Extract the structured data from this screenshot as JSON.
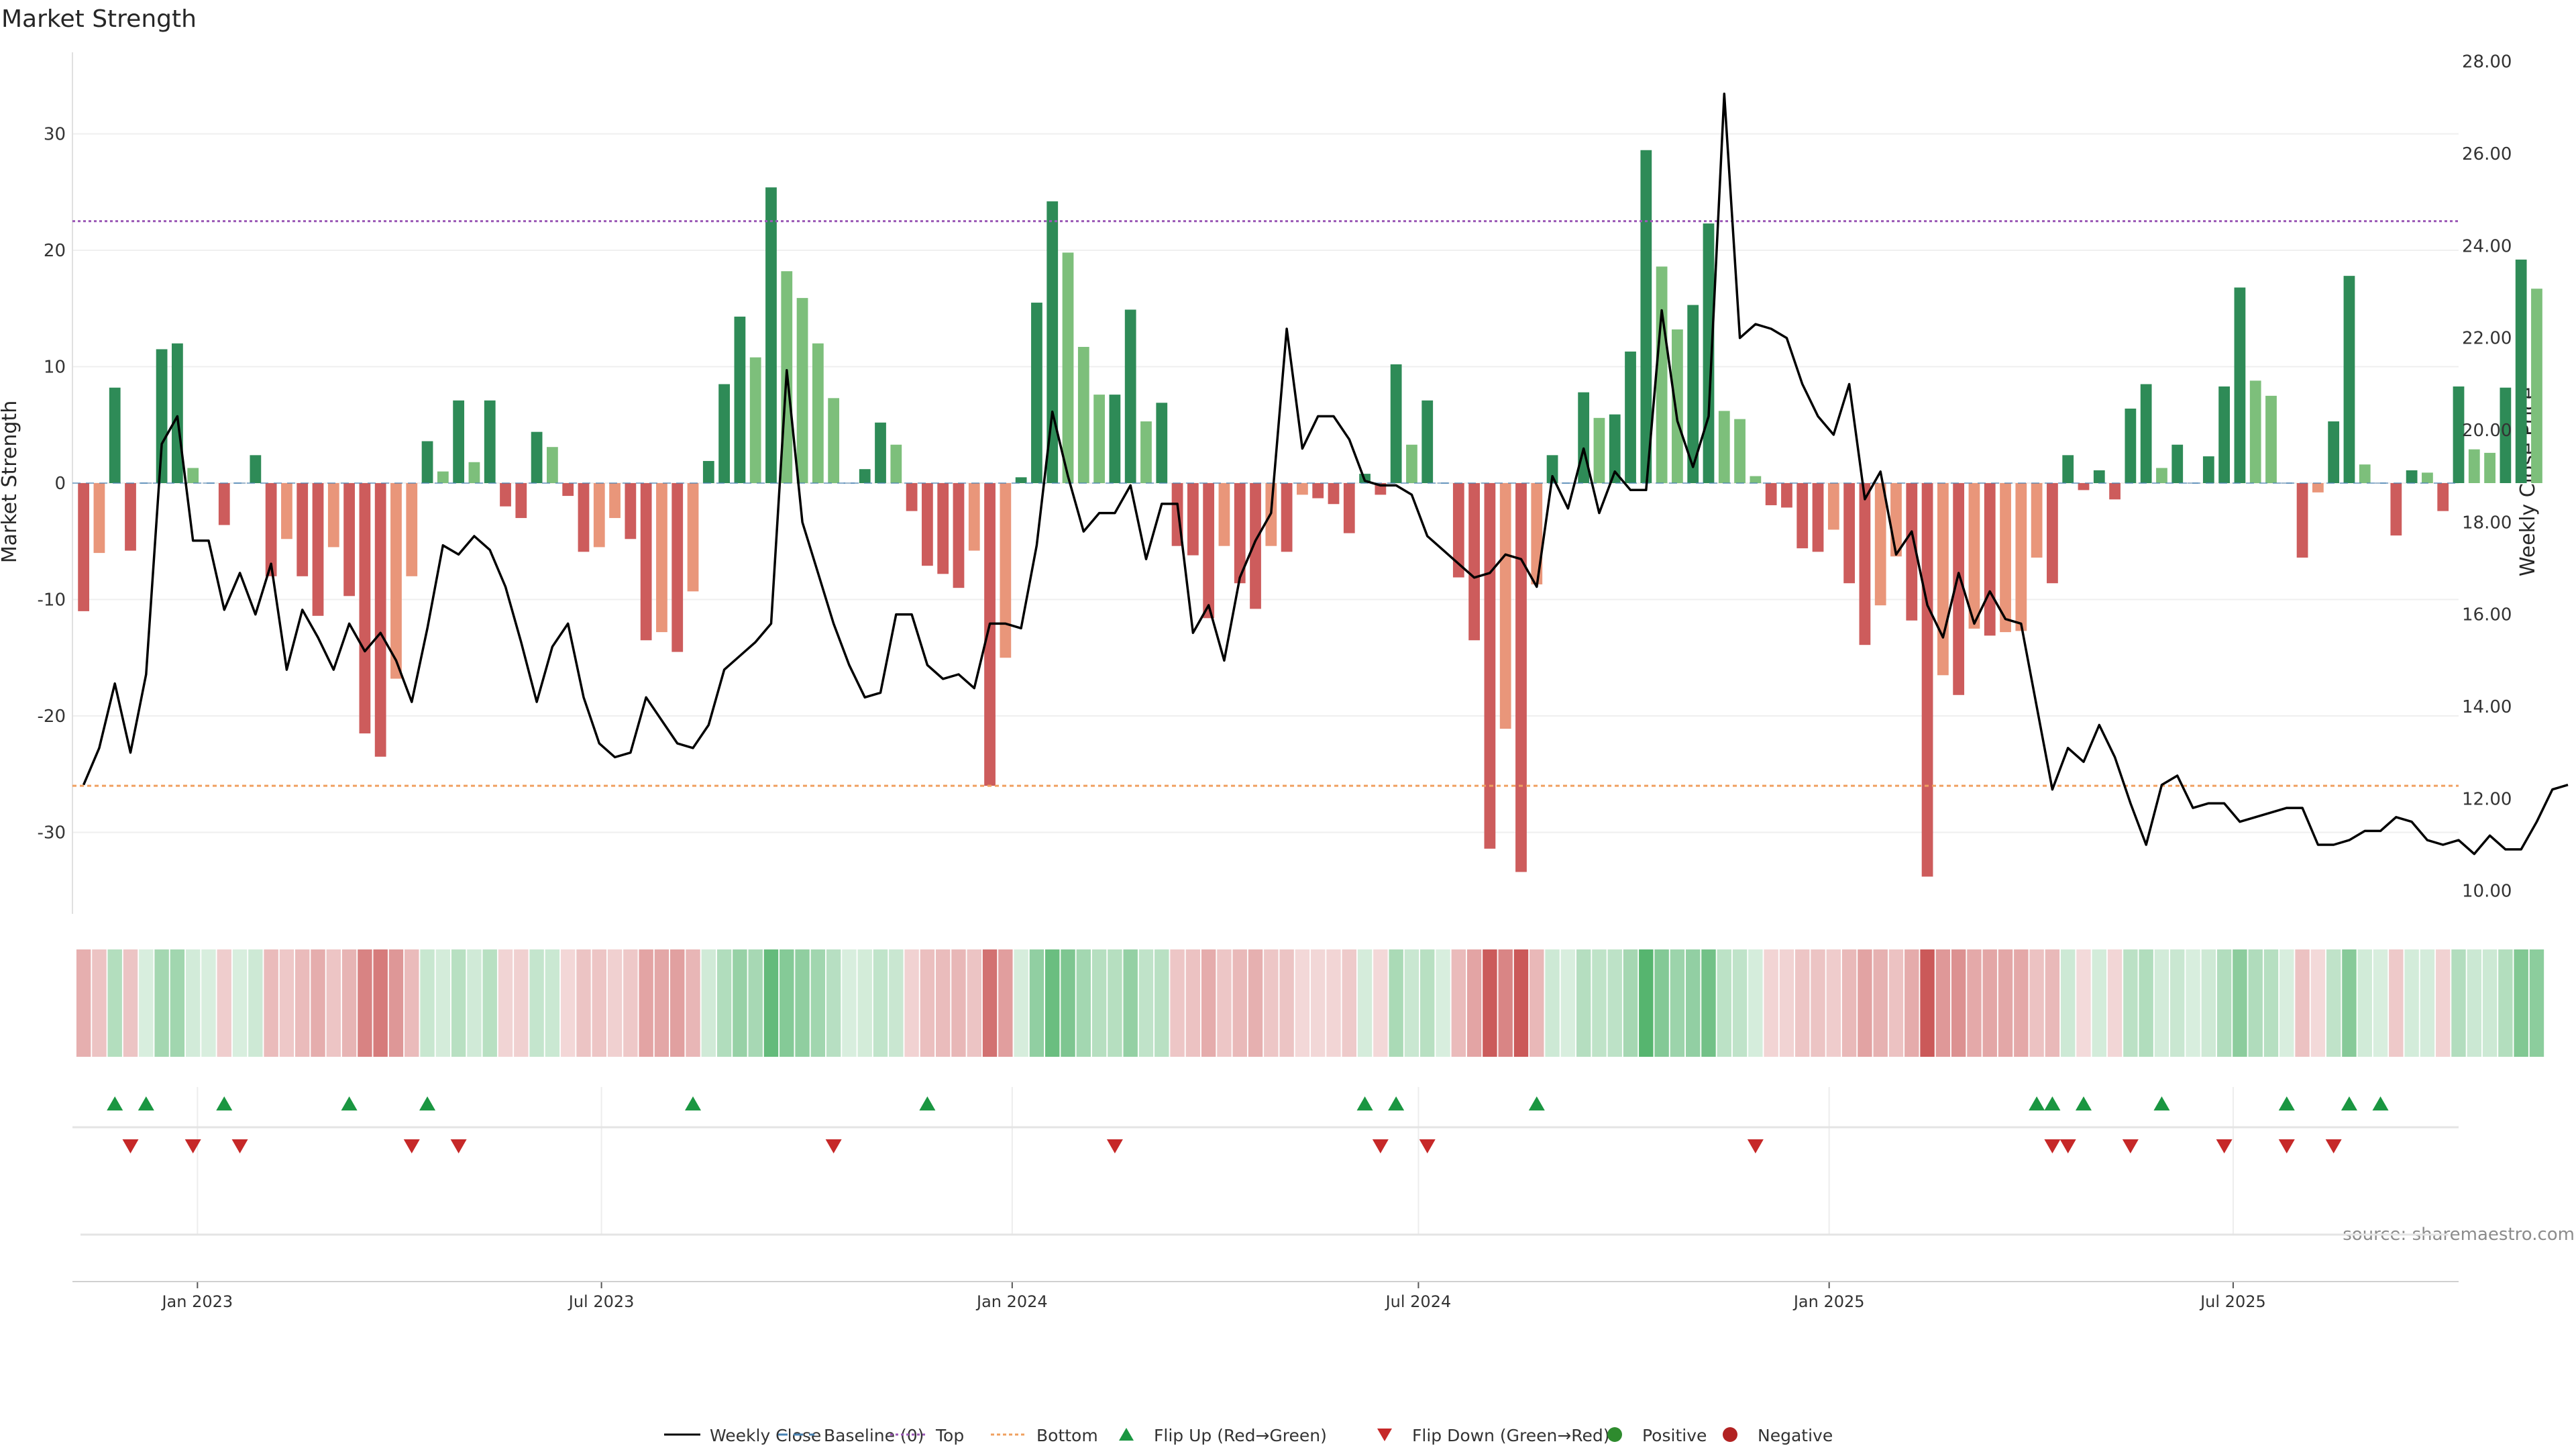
{
  "chart_data": {
    "type": "bar+line",
    "title": "Market Strength",
    "ylabel_left": "Market Strength",
    "ylabel_right": "Weekly Close Price",
    "source": "source: sharemaestro.com",
    "ylim_left": [
      -37,
      37
    ],
    "yticks_left": [
      30,
      20,
      10,
      0,
      -10,
      -20,
      -30
    ],
    "ylim_right": [
      9.5,
      28.2
    ],
    "yticks_right": [
      "28.00",
      "26.00",
      "24.00",
      "22.00",
      "20.00",
      "18.00",
      "16.00",
      "14.00",
      "12.00",
      "10.00"
    ],
    "x_start": "2022-11-06",
    "x_end": "2025-10-10",
    "week_start": "2022-11-11",
    "x_ticks": [
      {
        "label": "Jan 2023",
        "date": "2023-01-01"
      },
      {
        "label": "Jul 2023",
        "date": "2023-07-01"
      },
      {
        "label": "Jan 2024",
        "date": "2024-01-01"
      },
      {
        "label": "Jul 2024",
        "date": "2024-07-01"
      },
      {
        "label": "Jan 2025",
        "date": "2025-01-01"
      },
      {
        "label": "Jul 2025",
        "date": "2025-07-01"
      }
    ],
    "top_level": 22.5,
    "bottom_level": -26.0,
    "market_strength": [
      -11.0,
      -6.0,
      8.2,
      -5.8,
      0,
      11.5,
      12.0,
      1.3,
      0,
      -3.6,
      0,
      2.4,
      -8.0,
      -4.8,
      -8.0,
      -11.4,
      -5.5,
      -9.7,
      -21.5,
      -23.5,
      -16.8,
      -8.0,
      3.6,
      1.0,
      7.1,
      1.8,
      7.1,
      -2.0,
      -3.0,
      4.4,
      3.1,
      -1.1,
      -5.9,
      -5.5,
      -3.0,
      -4.8,
      -13.5,
      -12.8,
      -14.5,
      -9.3,
      1.9,
      8.5,
      14.3,
      10.8,
      25.4,
      18.2,
      15.9,
      12.0,
      7.3,
      0,
      1.2,
      5.2,
      3.3,
      -2.4,
      -7.1,
      -7.8,
      -9.0,
      -5.8,
      -26.0,
      -15.0,
      0.5,
      15.5,
      24.2,
      19.8,
      11.7,
      7.6,
      7.6,
      14.9,
      5.3,
      6.9,
      -5.4,
      -6.2,
      -11.6,
      -5.4,
      -8.6,
      -10.8,
      -5.4,
      -5.9,
      -1.0,
      -1.3,
      -1.8,
      -4.3,
      0.8,
      -1.0,
      10.2,
      3.3,
      7.1,
      0,
      -8.1,
      -13.5,
      -31.4,
      -21.1,
      -33.4,
      -8.7,
      2.4,
      0,
      7.8,
      5.6,
      5.9,
      11.3,
      28.6,
      18.6,
      13.2,
      15.3,
      22.3,
      6.2,
      5.5,
      0.6,
      -1.9,
      -2.1,
      -5.6,
      -5.9,
      -4.0,
      -8.6,
      -13.9,
      -10.5,
      -6.3,
      -11.8,
      -33.8,
      -16.5,
      -18.2,
      -12.5,
      -13.1,
      -12.8,
      -12.7,
      -6.4,
      -8.6,
      2.4,
      -0.6,
      1.1,
      -1.4,
      6.4,
      8.5,
      1.3,
      3.3,
      0,
      2.3,
      8.3,
      16.8,
      8.8,
      7.5,
      0,
      -6.4,
      -0.8,
      5.3,
      17.8,
      1.6,
      0,
      -4.5,
      1.1,
      0.9,
      -2.4,
      8.3,
      2.9,
      2.6,
      8.2,
      19.2,
      16.7
    ],
    "weekly_close": [
      12.3,
      13.1,
      14.5,
      13.0,
      14.7,
      19.7,
      20.3,
      17.6,
      17.6,
      16.1,
      16.9,
      16.0,
      17.1,
      14.8,
      16.1,
      15.5,
      14.8,
      15.8,
      15.2,
      15.6,
      15.0,
      14.1,
      15.7,
      17.5,
      17.3,
      17.7,
      17.4,
      16.6,
      15.4,
      14.1,
      15.3,
      15.8,
      14.2,
      13.2,
      12.9,
      13.0,
      14.2,
      13.7,
      13.2,
      13.1,
      13.6,
      14.8,
      15.1,
      15.4,
      15.8,
      21.3,
      18.0,
      16.9,
      15.8,
      14.9,
      14.2,
      14.3,
      16.0,
      16.0,
      14.9,
      14.6,
      14.7,
      14.4,
      15.8,
      15.8,
      15.7,
      17.5,
      20.4,
      19.0,
      17.8,
      18.2,
      18.2,
      18.8,
      17.2,
      18.4,
      18.4,
      15.6,
      16.2,
      15.0,
      16.8,
      17.6,
      18.2,
      22.2,
      19.6,
      20.3,
      20.3,
      19.8,
      18.9,
      18.8,
      18.8,
      18.6,
      17.7,
      17.4,
      17.1,
      16.8,
      16.9,
      17.3,
      17.2,
      16.6,
      19.0,
      18.3,
      19.6,
      18.2,
      19.1,
      18.7,
      18.7,
      22.6,
      20.2,
      19.2,
      20.3,
      27.3,
      22.0,
      22.3,
      22.2,
      22.0,
      21.0,
      20.3,
      19.9,
      21.0,
      18.5,
      19.1,
      17.3,
      17.8,
      16.2,
      15.5,
      16.9,
      15.8,
      16.5,
      15.9,
      15.8,
      14.0,
      12.2,
      13.1,
      12.8,
      13.6,
      12.9,
      11.9,
      11.0,
      12.3,
      12.5,
      11.8,
      11.9,
      11.9,
      11.5,
      11.6,
      11.7,
      11.8,
      11.8,
      11.0,
      11.0,
      11.1,
      11.3,
      11.3,
      11.6,
      11.5,
      11.1,
      11.0,
      11.1,
      10.8,
      11.2,
      10.9,
      10.9,
      11.5,
      12.2,
      12.3
    ],
    "flip_up_dates": [
      "2022-11-25",
      "2022-12-09",
      "2023-01-13",
      "2023-03-10",
      "2023-04-14",
      "2023-08-11",
      "2023-11-24",
      "2024-06-07",
      "2024-06-21",
      "2024-08-23",
      "2025-04-04",
      "2025-04-11",
      "2025-04-25",
      "2025-05-30",
      "2025-07-25",
      "2025-08-22",
      "2025-09-05"
    ],
    "flip_down_dates": [
      "2022-12-02",
      "2022-12-30",
      "2023-01-20",
      "2023-04-07",
      "2023-04-28",
      "2023-10-13",
      "2024-02-16",
      "2024-06-14",
      "2024-07-05",
      "2024-11-29",
      "2025-04-11",
      "2025-04-18",
      "2025-05-16",
      "2025-06-27",
      "2025-07-25",
      "2025-08-15"
    ],
    "colors": {
      "strong_green": "#2e8b57",
      "light_green": "#7dbf7b",
      "strong_red": "#cd5c5c",
      "light_red": "#e9967a",
      "line": "#000000",
      "top_line": "#9b59b6",
      "bottom_line": "#f0a060",
      "baseline": "#4682b4",
      "flip_up": "#1a9641",
      "flip_down": "#c62828",
      "positive_dot": "#2e8b2e",
      "negative_dot": "#b22222"
    },
    "legend": [
      {
        "label": "Weekly Close",
        "symbol": "line"
      },
      {
        "label": "Baseline (0)",
        "symbol": "dash"
      },
      {
        "label": "Top",
        "symbol": "dotted-purple"
      },
      {
        "label": "Bottom",
        "symbol": "dotted-orange"
      },
      {
        "label": "Flip Up (Red→Green)",
        "symbol": "triangle-up"
      },
      {
        "label": "Flip Down (Green→Red)",
        "symbol": "triangle-down"
      },
      {
        "label": "Positive",
        "symbol": "dot-green"
      },
      {
        "label": "Negative",
        "symbol": "dot-red"
      }
    ],
    "legend_position": "bottom-center"
  }
}
